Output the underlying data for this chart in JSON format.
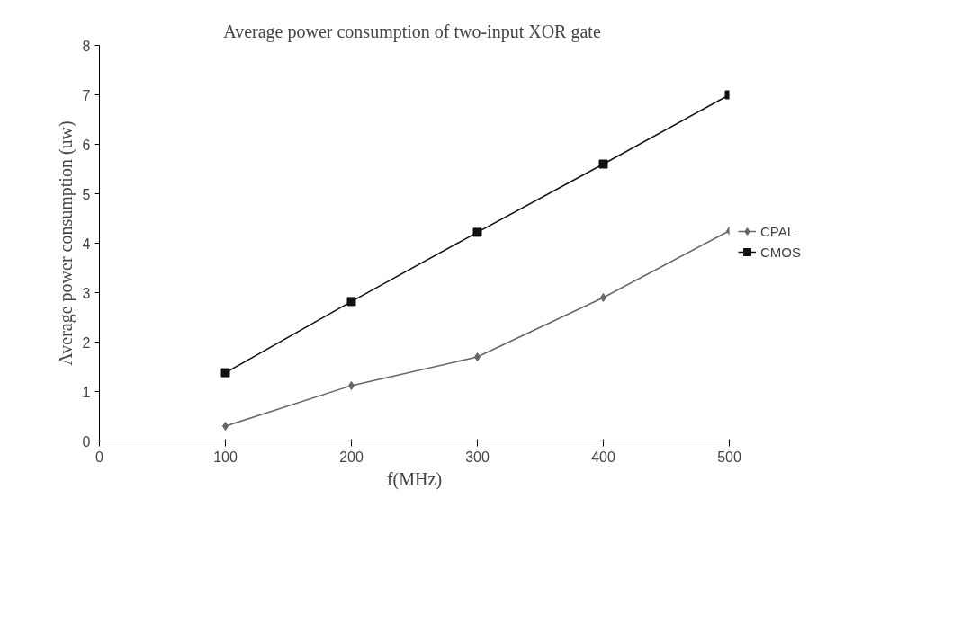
{
  "chart_data": {
    "type": "line",
    "title": "Average power consumption of  two-input XOR gate",
    "xlabel": "f(MHz)",
    "ylabel": "Average power consumption (uw)",
    "x": [
      100,
      200,
      300,
      400,
      500
    ],
    "series": [
      {
        "name": "CPAL",
        "color": "#666666",
        "marker": "diamond",
        "values": [
          0.3,
          1.12,
          1.7,
          2.9,
          4.25
        ]
      },
      {
        "name": "CMOS",
        "color": "#111111",
        "marker": "square",
        "values": [
          1.38,
          2.82,
          4.22,
          5.6,
          7.0
        ]
      }
    ],
    "xlim": [
      0,
      500
    ],
    "xticks": [
      0,
      100,
      200,
      300,
      400,
      500
    ],
    "ylim": [
      0,
      8
    ],
    "yticks": [
      0,
      1,
      2,
      3,
      4,
      5,
      6,
      7,
      8
    ],
    "grid": false,
    "legend": "right",
    "line_style": "solid"
  }
}
